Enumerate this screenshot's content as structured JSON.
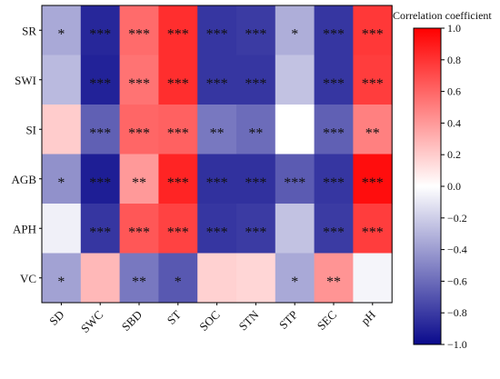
{
  "chart_data": {
    "type": "heatmap",
    "title": "",
    "rows": [
      "SR",
      "SWI",
      "SI",
      "AGB",
      "APH",
      "VC"
    ],
    "columns": [
      "SD",
      "SWC",
      "SBD",
      "ST",
      "SOC",
      "STN",
      "STP",
      "SEC",
      "pH"
    ],
    "values": [
      [
        -0.35,
        -0.88,
        0.58,
        0.82,
        -0.82,
        -0.8,
        -0.33,
        -0.82,
        0.78
      ],
      [
        -0.28,
        -0.9,
        0.55,
        0.82,
        -0.82,
        -0.82,
        -0.25,
        -0.82,
        0.76
      ],
      [
        0.2,
        -0.65,
        0.6,
        0.62,
        -0.55,
        -0.6,
        0.0,
        -0.65,
        0.5
      ],
      [
        -0.45,
        -0.92,
        0.4,
        0.86,
        -0.84,
        -0.84,
        -0.67,
        -0.82,
        0.95
      ],
      [
        -0.06,
        -0.82,
        0.66,
        0.74,
        -0.82,
        -0.8,
        -0.25,
        -0.8,
        0.76
      ],
      [
        -0.38,
        0.28,
        -0.55,
        -0.68,
        0.18,
        0.16,
        -0.35,
        0.42,
        -0.04
      ]
    ],
    "significance": [
      [
        "*",
        "***",
        "***",
        "***",
        "***",
        "***",
        "*",
        "***",
        "***"
      ],
      [
        "",
        "***",
        "***",
        "***",
        "***",
        "***",
        "",
        "***",
        "***"
      ],
      [
        "",
        "***",
        "***",
        "***",
        "**",
        "**",
        "",
        "***",
        "**"
      ],
      [
        "*",
        "***",
        "**",
        "***",
        "***",
        "***",
        "***",
        "***",
        "***"
      ],
      [
        "",
        "***",
        "***",
        "***",
        "***",
        "***",
        "",
        "***",
        "***"
      ],
      [
        "*",
        "",
        "**",
        "*",
        "",
        "",
        "*",
        "**",
        ""
      ]
    ],
    "colorbar": {
      "title": "Correlation coefficient",
      "min": -1.0,
      "max": 1.0,
      "ticks": [
        1.0,
        0.8,
        0.6,
        0.4,
        0.2,
        0.0,
        -0.2,
        -0.4,
        -0.6,
        -0.8,
        -1.0
      ],
      "tick_labels": [
        "1.0",
        "0.8",
        "0.6",
        "0.4",
        "0.2",
        "0.0",
        "−0.2",
        "−0.4",
        "−0.6",
        "−0.8",
        "−1.0"
      ],
      "colors": {
        "low": "#0a0a8c",
        "mid": "#ffffff",
        "high": "#ff0000"
      }
    }
  }
}
